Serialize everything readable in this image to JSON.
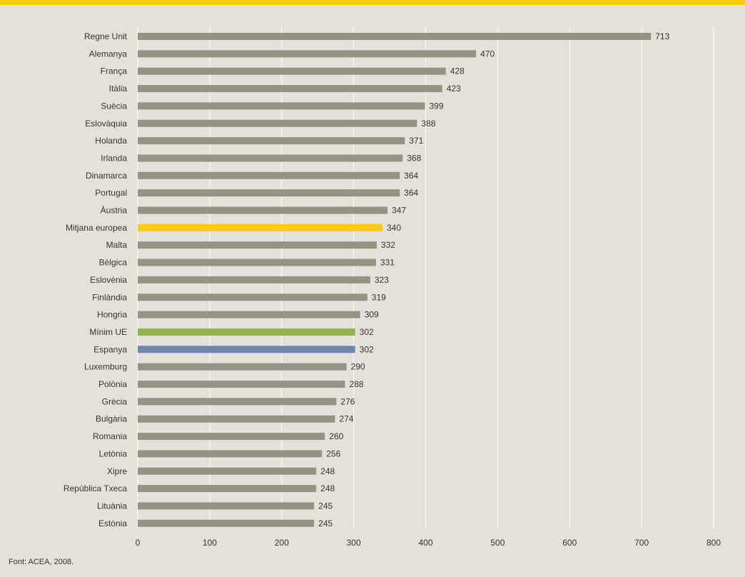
{
  "colors": {
    "top_bar": "#ffcc00",
    "background": "#e3e1da",
    "grid": "#ffffff",
    "bar_default": "#959383",
    "bar_highlight_average": "#ffcc00",
    "bar_highlight_min": "#95b150",
    "bar_highlight_spain": "#6f86b1"
  },
  "chart_data": {
    "type": "bar",
    "orientation": "horizontal",
    "categories": [
      "Regne Unit",
      "Alemanya",
      "França",
      "Itàlia",
      "Suècia",
      "Eslovàquia",
      "Holanda",
      "Irlanda",
      "Dinamarca",
      "Portugal",
      "Àustria",
      "Mitjana europea",
      "Malta",
      "Bèlgica",
      "Eslovènia",
      "Finlàndia",
      "Hongria",
      "Mínim UE",
      "Espanya",
      "Luxemburg",
      "Polònia",
      "Grècia",
      "Bulgària",
      "Romania",
      "Letònia",
      "Xipre",
      "República Txeca",
      "Lituània",
      "Estònia"
    ],
    "values": [
      713,
      470,
      428,
      423,
      399,
      388,
      371,
      368,
      364,
      364,
      347,
      340,
      332,
      331,
      323,
      319,
      309,
      302,
      302,
      290,
      288,
      276,
      274,
      260,
      256,
      248,
      248,
      245,
      245
    ],
    "highlights": {
      "Mitjana europea": "bar_highlight_average",
      "Mínim UE": "bar_highlight_min",
      "Espanya": "bar_highlight_spain"
    },
    "xlim": [
      0,
      800
    ],
    "xticks": [
      0,
      100,
      200,
      300,
      400,
      500,
      600,
      700,
      800
    ],
    "grid": true,
    "legend": "none",
    "data_labels": true
  },
  "source_note": "Font: ACEA, 2008."
}
